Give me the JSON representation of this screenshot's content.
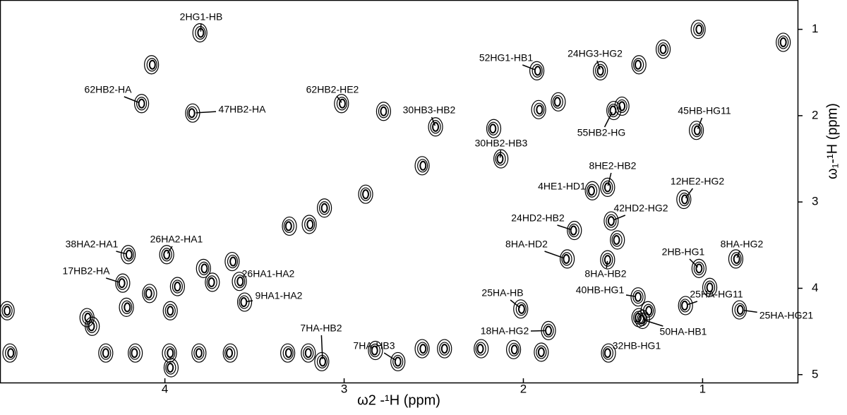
{
  "chart_data": {
    "type": "scatter",
    "x_label": "ω2 -¹H (ppm)",
    "y_label": "ω₁-¹H (ppm)",
    "xlim": [
      4.92,
      0.47
    ],
    "ylim": [
      0.66,
      5.1
    ],
    "xticks": [
      4,
      3,
      2,
      1
    ],
    "yticks": [
      1,
      2,
      3,
      4,
      5
    ],
    "color": "#000000",
    "annotations": [
      {
        "text": "2HG1-HB",
        "x": 3.8,
        "y": 1.04
      },
      {
        "text": "62HB2-HA",
        "x": 4.13,
        "y": 1.86
      },
      {
        "text": "47HB2-HA",
        "x": 3.85,
        "y": 1.97
      },
      {
        "text": "62HB2-HE2",
        "x": 3.01,
        "y": 1.86
      },
      {
        "text": "30HB3-HB2",
        "x": 2.49,
        "y": 2.13
      },
      {
        "text": "30HB2-HB3",
        "x": 2.13,
        "y": 2.5
      },
      {
        "text": "52HG1-HB1",
        "x": 1.92,
        "y": 1.48
      },
      {
        "text": "24HG3-HG2",
        "x": 1.57,
        "y": 1.48
      },
      {
        "text": "55HB2-HG",
        "x": 1.5,
        "y": 1.94
      },
      {
        "text": "45HB-HG11",
        "x": 1.03,
        "y": 2.17
      },
      {
        "text": "8HE2-HB2",
        "x": 1.53,
        "y": 2.83
      },
      {
        "text": "4HE1-HD1",
        "x": 1.62,
        "y": 2.87
      },
      {
        "text": "12HE2-HG2",
        "x": 1.1,
        "y": 2.97
      },
      {
        "text": "42HD2-HG2",
        "x": 1.51,
        "y": 3.22
      },
      {
        "text": "24HD2-HB2",
        "x": 1.72,
        "y": 3.33
      },
      {
        "text": "38HA2-HA1",
        "x": 4.2,
        "y": 3.61
      },
      {
        "text": "26HA2-HA1",
        "x": 3.99,
        "y": 3.61
      },
      {
        "text": "8HA-HD2",
        "x": 1.76,
        "y": 3.66
      },
      {
        "text": "8HA-HG2",
        "x": 0.81,
        "y": 3.66
      },
      {
        "text": "2HB-HG1",
        "x": 1.02,
        "y": 3.77
      },
      {
        "text": "17HB2-HA",
        "x": 4.24,
        "y": 3.94
      },
      {
        "text": "26HA1-HA2",
        "x": 3.58,
        "y": 3.92
      },
      {
        "text": "8HA-HB2",
        "x": 1.53,
        "y": 3.67
      },
      {
        "text": "9HA1-HA2",
        "x": 3.56,
        "y": 4.16
      },
      {
        "text": "25HA-HB",
        "x": 2.01,
        "y": 4.24
      },
      {
        "text": "40HB-HG1",
        "x": 1.36,
        "y": 4.1
      },
      {
        "text": "25HA-HG11",
        "x": 1.1,
        "y": 4.2
      },
      {
        "text": "25HA-HG21",
        "x": 0.79,
        "y": 4.25
      },
      {
        "text": "18HA-HG2",
        "x": 1.86,
        "y": 4.49
      },
      {
        "text": "50HA-HB1",
        "x": 1.34,
        "y": 4.36
      },
      {
        "text": "7HA-HB2",
        "x": 3.12,
        "y": 4.85
      },
      {
        "text": "7HA-HB3",
        "x": 2.7,
        "y": 4.85
      },
      {
        "text": "32HB-HG1",
        "x": 1.53,
        "y": 4.75
      }
    ],
    "peaks": {
      "x": [
        1.02,
        1.22,
        1.36,
        4.07,
        1.45,
        1.81,
        1.91,
        2.78,
        2.17,
        2.56,
        2.88,
        3.31,
        3.19,
        3.11,
        1.48,
        3.78,
        3.93,
        4.09,
        4.21,
        4.33,
        4.17,
        3.97,
        3.81,
        3.64,
        3.31,
        3.2,
        2.83,
        2.56,
        2.44,
        2.24,
        2.05,
        1.9,
        1.36,
        1.3,
        0.96,
        4.41,
        4.43,
        4.88,
        3.97,
        4.86,
        3.97,
        3.74,
        3.62,
        0.55
      ],
      "y": [
        1.0,
        1.23,
        1.41,
        1.41,
        1.89,
        1.84,
        1.93,
        1.95,
        2.15,
        2.58,
        2.91,
        3.28,
        3.26,
        3.07,
        3.44,
        3.77,
        3.98,
        4.06,
        4.22,
        4.75,
        4.75,
        4.75,
        4.75,
        4.75,
        4.75,
        4.75,
        4.72,
        4.7,
        4.7,
        4.7,
        4.71,
        4.74,
        4.34,
        4.26,
        3.99,
        4.44,
        4.34,
        4.26,
        4.92,
        4.75,
        4.26,
        3.93,
        3.69,
        1.15
      ]
    }
  }
}
